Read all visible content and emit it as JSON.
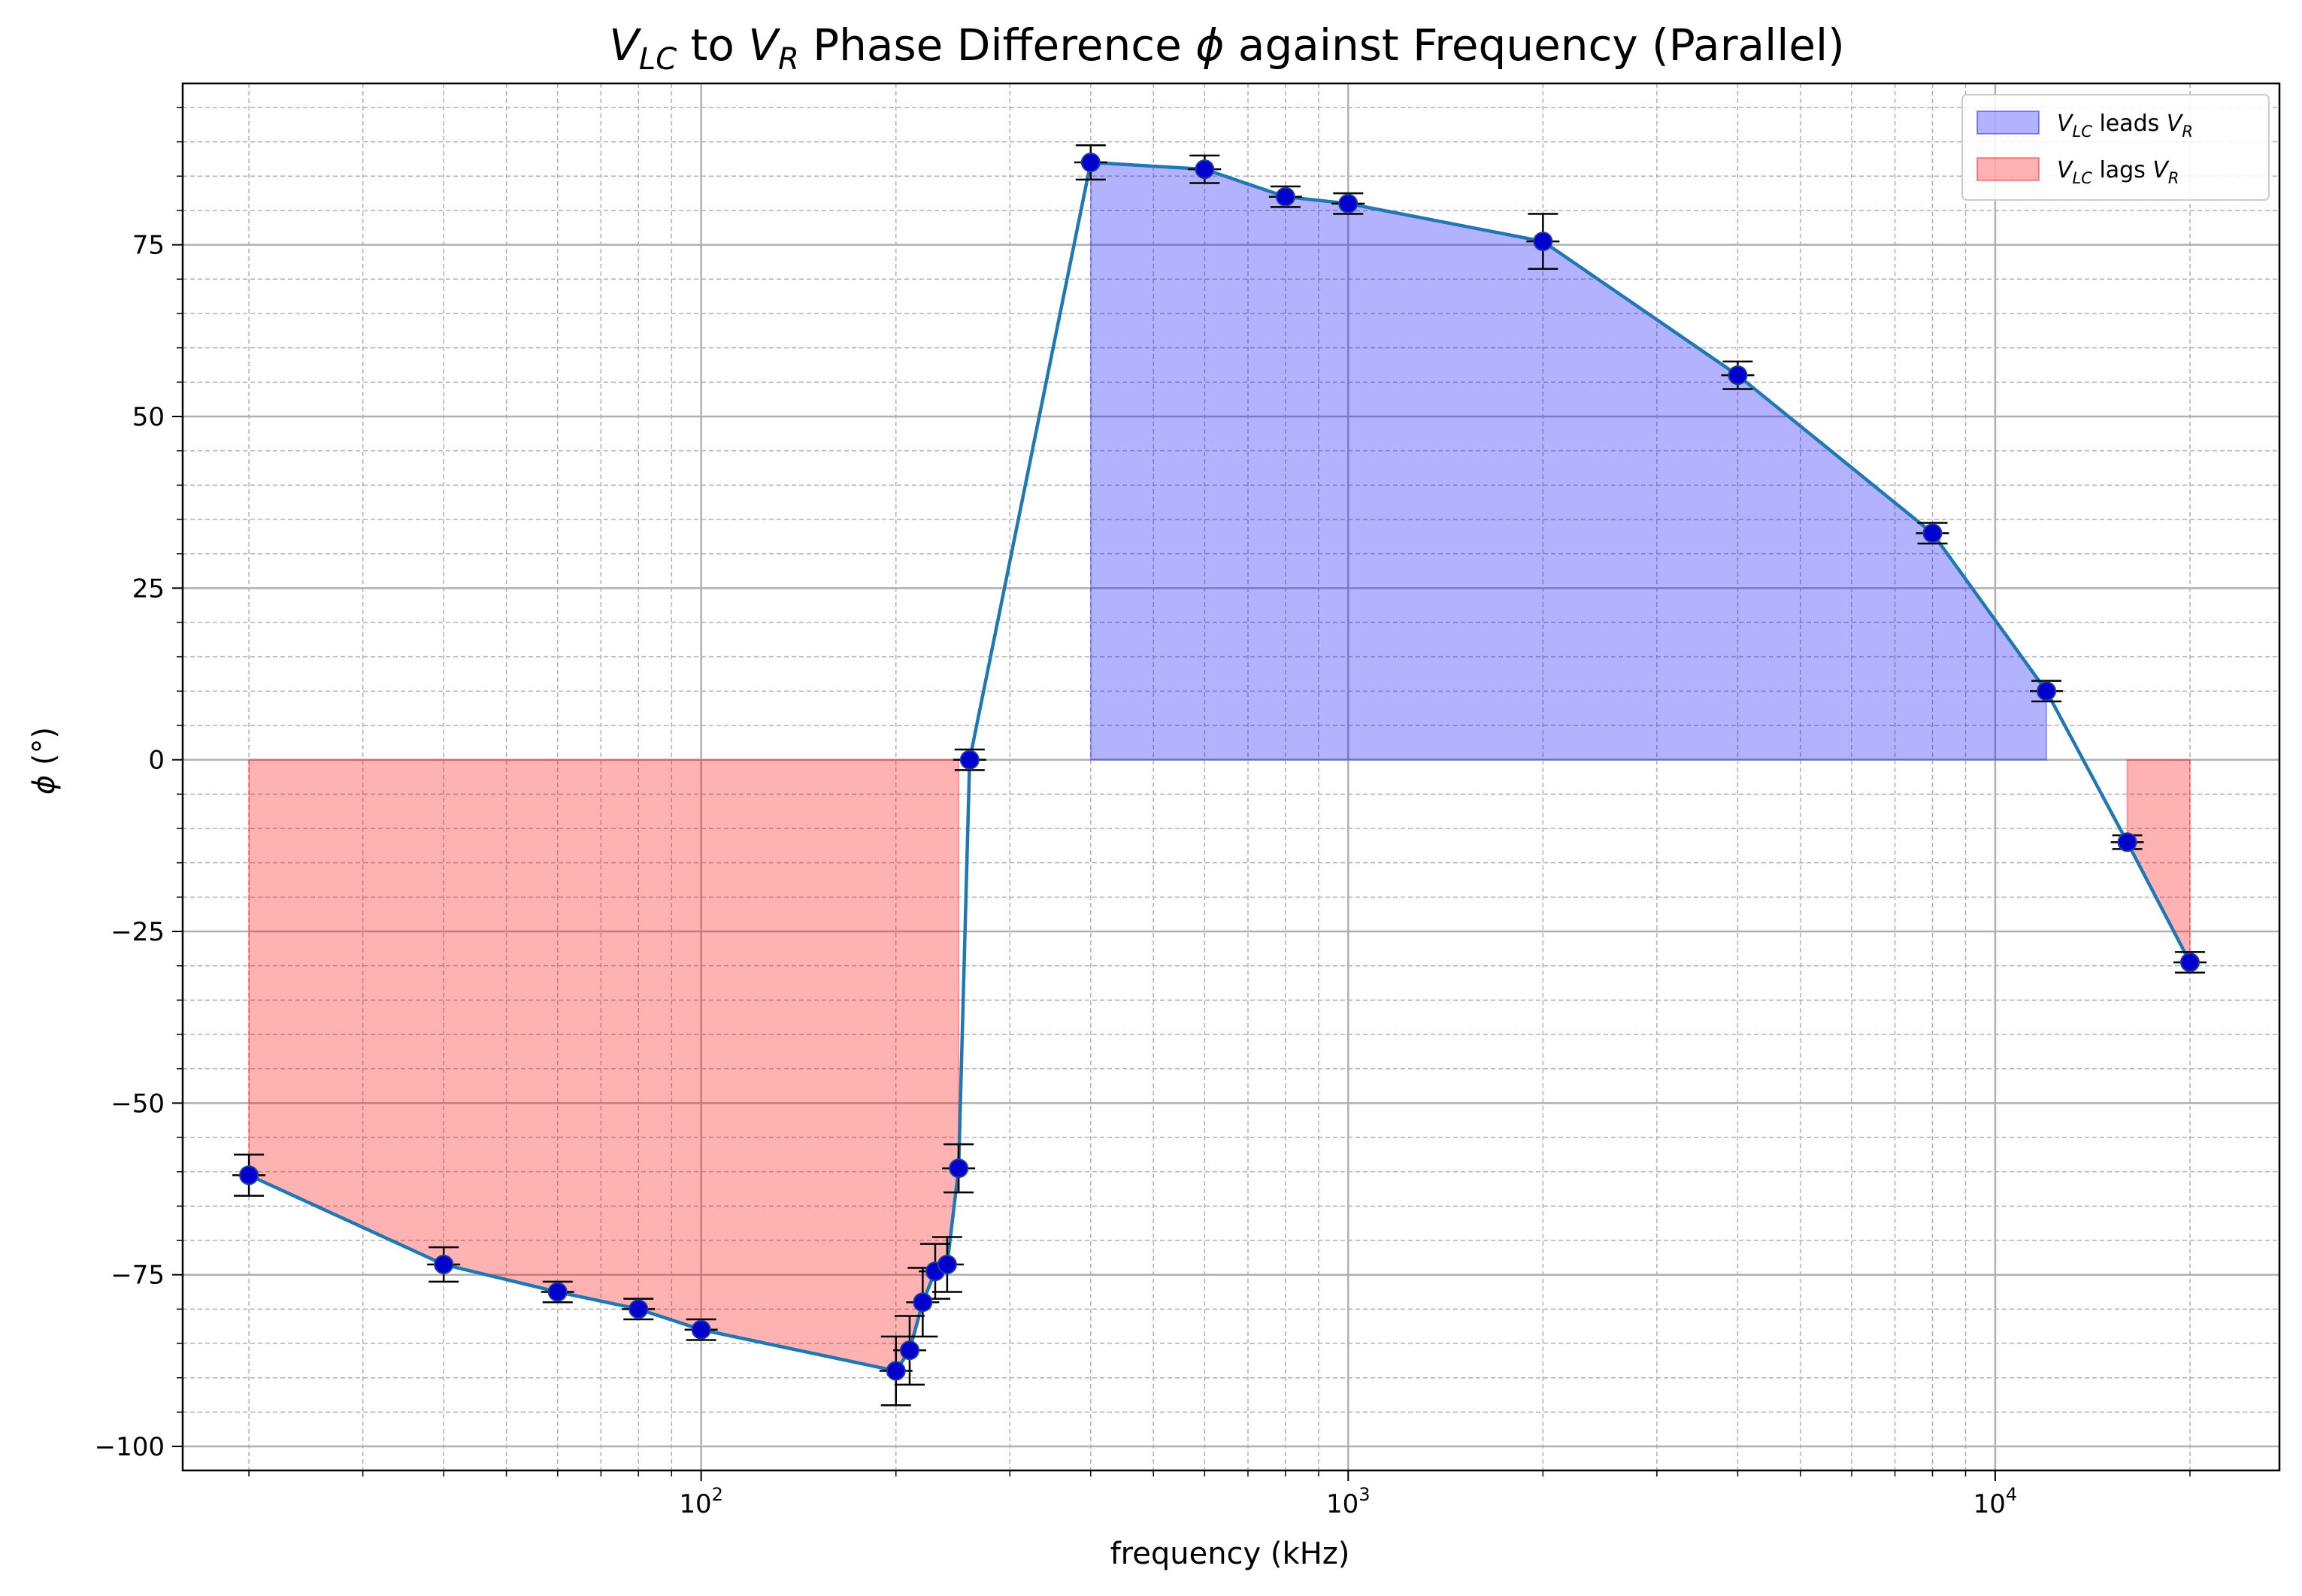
{
  "chart_data": {
    "type": "scatter",
    "title_parts": [
      "V",
      "LC",
      " to ",
      "V",
      "R",
      " Phase Difference ",
      "ϕ",
      " against Frequency (Parallel)"
    ],
    "xlabel": "frequency (kHz)",
    "ylabel_parts": [
      "ϕ",
      " (°)"
    ],
    "x_scale": "log",
    "xlim": [
      15.8,
      27500
    ],
    "ylim": [
      -103.5,
      98.5
    ],
    "x_ticks": [
      {
        "value": 100,
        "base": "10",
        "exp": "2"
      },
      {
        "value": 1000,
        "base": "10",
        "exp": "3"
      },
      {
        "value": 10000,
        "base": "10",
        "exp": "4"
      }
    ],
    "y_ticks": [
      {
        "value": 75,
        "label": "75"
      },
      {
        "value": 50,
        "label": "50"
      },
      {
        "value": 25,
        "label": "25"
      },
      {
        "value": 0,
        "label": "0"
      },
      {
        "value": -25,
        "label": "−25"
      },
      {
        "value": -50,
        "label": "−50"
      },
      {
        "value": -75,
        "label": "−75"
      },
      {
        "value": -100,
        "label": "−100"
      }
    ],
    "y_minor_step": 5,
    "grid": true,
    "legend_position": "top-right",
    "legend": [
      {
        "sym": "V",
        "sub": "LC",
        "mid": " leads ",
        "sym2": "V",
        "sub2": "R",
        "color": "#0000ff"
      },
      {
        "sym": "V",
        "sub": "LC",
        "mid": " lags ",
        "sym2": "V",
        "sub2": "R",
        "color": "#ff0000"
      }
    ],
    "series": [
      {
        "line_color": "#1f77b4",
        "marker_color": "#0000cc",
        "errorbar_color": "#000000",
        "points": [
          {
            "x": 20,
            "y": -60.5,
            "yerr": 3
          },
          {
            "x": 40,
            "y": -73.5,
            "yerr": 2.5
          },
          {
            "x": 60,
            "y": -77.5,
            "yerr": 1.5
          },
          {
            "x": 80,
            "y": -80,
            "yerr": 1.5
          },
          {
            "x": 100,
            "y": -83,
            "yerr": 1.5
          },
          {
            "x": 200,
            "y": -89,
            "yerr": 5
          },
          {
            "x": 210,
            "y": -86,
            "yerr": 5
          },
          {
            "x": 220,
            "y": -79,
            "yerr": 5
          },
          {
            "x": 230,
            "y": -74.5,
            "yerr": 4
          },
          {
            "x": 240,
            "y": -73.5,
            "yerr": 4
          },
          {
            "x": 250,
            "y": -59.5,
            "yerr": 3.5
          },
          {
            "x": 260,
            "y": 0,
            "yerr": 1.5
          },
          {
            "x": 400,
            "y": 87,
            "yerr": 2.5
          },
          {
            "x": 600,
            "y": 86,
            "yerr": 2
          },
          {
            "x": 800,
            "y": 82,
            "yerr": 1.5
          },
          {
            "x": 1000,
            "y": 81,
            "yerr": 1.5
          },
          {
            "x": 2000,
            "y": 75.5,
            "yerr": 4
          },
          {
            "x": 4000,
            "y": 56,
            "yerr": 2
          },
          {
            "x": 8000,
            "y": 33,
            "yerr": 1.5
          },
          {
            "x": 12000,
            "y": 10,
            "yerr": 1.5
          },
          {
            "x": 16000,
            "y": -12,
            "yerr": 1
          },
          {
            "x": 20000,
            "y": -29.5,
            "yerr": 1.5
          }
        ]
      }
    ]
  }
}
